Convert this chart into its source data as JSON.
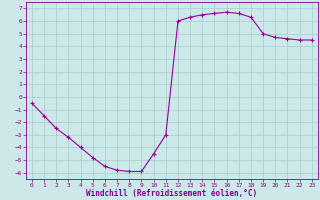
{
  "xlabel": "Windchill (Refroidissement éolien,°C)",
  "x": [
    0,
    1,
    2,
    3,
    4,
    5,
    6,
    7,
    8,
    9,
    10,
    11,
    12,
    13,
    14,
    15,
    16,
    17,
    18,
    19,
    20,
    21,
    22,
    23
  ],
  "y": [
    -0.5,
    -1.5,
    -2.5,
    -3.2,
    -4.0,
    -4.8,
    -5.5,
    -5.8,
    -5.9,
    -5.9,
    -4.5,
    -3.0,
    6.0,
    6.3,
    6.5,
    6.6,
    6.7,
    6.6,
    6.3,
    5.0,
    4.7,
    4.6,
    4.5,
    4.5
  ],
  "line_color": "#990099",
  "marker": "+",
  "bg_color": "#cce8e8",
  "grid_color": "#aacccc",
  "tick_color": "#880088",
  "label_color": "#880088",
  "ylim": [
    -6.5,
    7.5
  ],
  "xlim": [
    -0.5,
    23.5
  ],
  "yticks": [
    -6,
    -5,
    -4,
    -3,
    -2,
    -1,
    0,
    1,
    2,
    3,
    4,
    5,
    6,
    7
  ],
  "xticks": [
    0,
    1,
    2,
    3,
    4,
    5,
    6,
    7,
    8,
    9,
    10,
    11,
    12,
    13,
    14,
    15,
    16,
    17,
    18,
    19,
    20,
    21,
    22,
    23
  ]
}
